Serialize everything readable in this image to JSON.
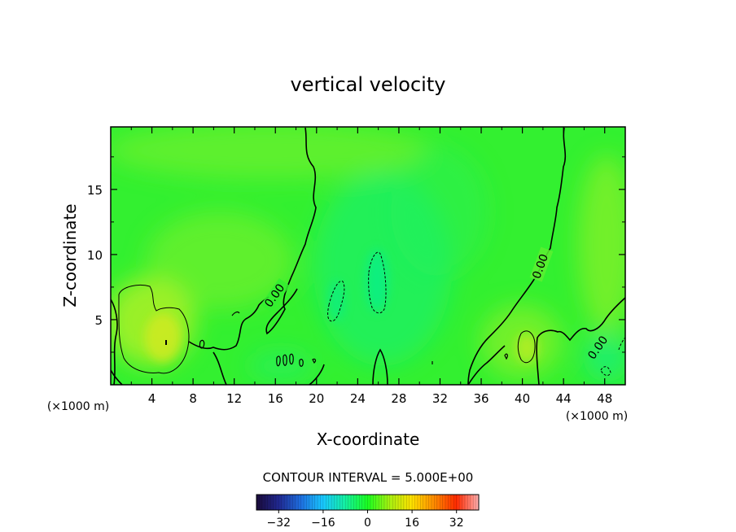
{
  "chart_data": {
    "type": "heatmap",
    "title": "vertical velocity",
    "xlabel": "X-coordinate",
    "ylabel": "Z-coordinate",
    "x_unit_left": "(×1000 m)",
    "x_unit_right": "(×1000 m)",
    "xlim": [
      0,
      50
    ],
    "ylim": [
      0,
      19.8
    ],
    "x_ticks": [
      4,
      8,
      12,
      16,
      20,
      24,
      28,
      32,
      36,
      40,
      44,
      48
    ],
    "y_ticks": [
      5,
      10,
      15
    ],
    "contour_interval_text": "CONTOUR INTERVAL = 5.000E+00",
    "contour_labels": [
      {
        "text": "0.00",
        "x": 16.5,
        "y": 6.6,
        "angle": -55
      },
      {
        "text": "0.00",
        "x": 42.0,
        "y": 9.3,
        "angle": -70
      },
      {
        "text": "0.00",
        "x": 47.3,
        "y": 2.9,
        "angle": -55
      }
    ],
    "colorbar": {
      "range": [
        -40,
        40
      ],
      "ticks": [
        -32,
        -16,
        0,
        16,
        32
      ],
      "colors": [
        "#1a0a3a",
        "#202890",
        "#1e6fe0",
        "#18c8ff",
        "#14f0a0",
        "#1aff20",
        "#a8f010",
        "#ffe000",
        "#ff8a00",
        "#ff2a00",
        "#ffb0b0"
      ]
    },
    "field_colors": {
      "background": "#33f030",
      "updraft_tint": "#aef028",
      "downdraft_tint": "#00f09a"
    }
  }
}
